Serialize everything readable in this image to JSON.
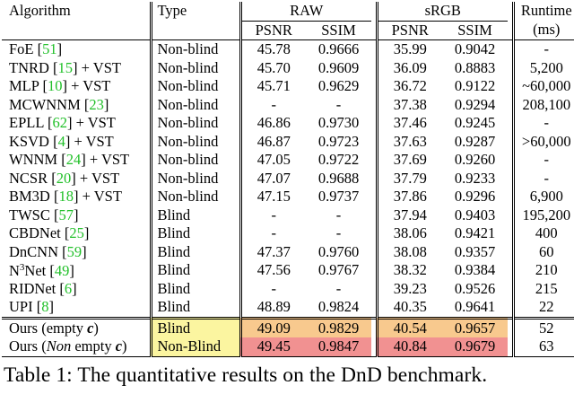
{
  "header": {
    "algorithm": "Algorithm",
    "type": "Type",
    "raw": "RAW",
    "srgb": "sRGB",
    "runtime": "Runtime",
    "runtime_unit": "(ms)",
    "psnr": "PSNR",
    "ssim": "SSIM"
  },
  "rows": [
    {
      "name": "FoE ",
      "cite": "51",
      "suffix": "",
      "type": "Non-blind",
      "raw_psnr": "45.78",
      "raw_ssim": "0.9666",
      "srgb_psnr": "35.99",
      "srgb_ssim": "0.9042",
      "runtime": "-"
    },
    {
      "name": "TNRD ",
      "cite": "15",
      "suffix": " + VST",
      "type": "Non-blind",
      "raw_psnr": "45.70",
      "raw_ssim": "0.9609",
      "srgb_psnr": "36.09",
      "srgb_ssim": "0.8883",
      "runtime": "5,200"
    },
    {
      "name": "MLP ",
      "cite": "10",
      "suffix": " + VST",
      "type": "Non-blind",
      "raw_psnr": "45.71",
      "raw_ssim": "0.9629",
      "srgb_psnr": "36.72",
      "srgb_ssim": "0.9122",
      "runtime": "~60,000"
    },
    {
      "name": "MCWNNM ",
      "cite": "23",
      "suffix": "",
      "type": "Non-blind",
      "raw_psnr": "-",
      "raw_ssim": "-",
      "srgb_psnr": "37.38",
      "srgb_ssim": "0.9294",
      "runtime": "208,100"
    },
    {
      "name": "EPLL ",
      "cite": "62",
      "suffix": " + VST",
      "type": "Non-blind",
      "raw_psnr": "46.86",
      "raw_ssim": "0.9730",
      "srgb_psnr": "37.46",
      "srgb_ssim": "0.9245",
      "runtime": "-"
    },
    {
      "name": "KSVD ",
      "cite": "4",
      "suffix": " + VST",
      "type": "Non-blind",
      "raw_psnr": "46.87",
      "raw_ssim": "0.9723",
      "srgb_psnr": "37.63",
      "srgb_ssim": "0.9287",
      "runtime": ">60,000"
    },
    {
      "name": "WNNM ",
      "cite": "24",
      "suffix": " + VST",
      "type": "Non-blind",
      "raw_psnr": "47.05",
      "raw_ssim": "0.9722",
      "srgb_psnr": "37.69",
      "srgb_ssim": "0.9260",
      "runtime": "-"
    },
    {
      "name": "NCSR ",
      "cite": "20",
      "suffix": " + VST",
      "type": "Non-blind",
      "raw_psnr": "47.07",
      "raw_ssim": "0.9688",
      "srgb_psnr": "37.79",
      "srgb_ssim": "0.9233",
      "runtime": "-"
    },
    {
      "name": "BM3D ",
      "cite": "18",
      "suffix": " + VST",
      "type": "Non-blind",
      "raw_psnr": "47.15",
      "raw_ssim": "0.9737",
      "srgb_psnr": "37.86",
      "srgb_ssim": "0.9296",
      "runtime": "6,900"
    },
    {
      "name": "TWSC ",
      "cite": "57",
      "suffix": "",
      "type": "Blind",
      "raw_psnr": "-",
      "raw_ssim": "-",
      "srgb_psnr": "37.94",
      "srgb_ssim": "0.9403",
      "runtime": "195,200"
    },
    {
      "name": "CBDNet ",
      "cite": "25",
      "suffix": "",
      "type": "Blind",
      "raw_psnr": "-",
      "raw_ssim": "-",
      "srgb_psnr": "38.06",
      "srgb_ssim": "0.9421",
      "runtime": "400"
    },
    {
      "name": "DnCNN ",
      "cite": "59",
      "suffix": "",
      "type": "Blind",
      "raw_psnr": "47.37",
      "raw_ssim": "0.9760",
      "srgb_psnr": "38.08",
      "srgb_ssim": "0.9357",
      "runtime": "60"
    },
    {
      "name": "N",
      "sup": "3",
      "name2": "Net ",
      "cite": "49",
      "suffix": "",
      "type": "Blind",
      "raw_psnr": "47.56",
      "raw_ssim": "0.9767",
      "srgb_psnr": "38.32",
      "srgb_ssim": "0.9384",
      "runtime": "210"
    },
    {
      "name": "RIDNet ",
      "cite": "6",
      "suffix": "",
      "type": "Blind",
      "raw_psnr": "-",
      "raw_ssim": "-",
      "srgb_psnr": "39.23",
      "srgb_ssim": "0.9526",
      "runtime": "215"
    },
    {
      "name": "UPI ",
      "cite": "8",
      "suffix": "",
      "type": "Blind",
      "raw_psnr": "48.89",
      "raw_ssim": "0.9824",
      "srgb_psnr": "40.35",
      "srgb_ssim": "0.9641",
      "runtime": "22"
    }
  ],
  "ours": [
    {
      "prefix": "Ours (empty ",
      "var": "c",
      "close": ")",
      "type": "Blind",
      "raw_psnr": "49.09",
      "raw_ssim": "0.9829",
      "srgb_psnr": "40.54",
      "srgb_ssim": "0.9657",
      "runtime": "52"
    },
    {
      "prefix": "Ours (",
      "italic": "Non",
      "mid": " empty ",
      "var": "c",
      "close": ")",
      "type": "Non-Blind",
      "raw_psnr": "49.45",
      "raw_ssim": "0.9847",
      "srgb_psnr": "40.84",
      "srgb_ssim": "0.9679",
      "runtime": "63"
    }
  ],
  "colors": {
    "cite": "#22c02a",
    "yellow": "#fbf5a0",
    "orange": "#f8c98e",
    "red": "#f19191"
  },
  "caption": "Table 1: The quantitative results on the DnD benchmark."
}
